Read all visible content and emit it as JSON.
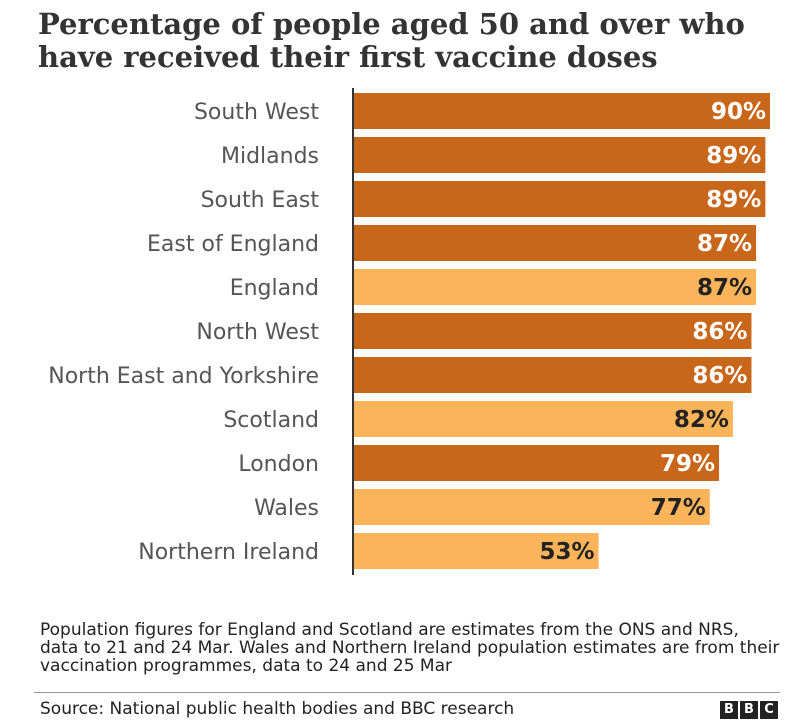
{
  "title": "Percentage of people aged 50 and over who have received their first vaccine doses",
  "note": "Population figures for England and Scotland are estimates from the ONS and NRS, data to 21 and 24 Mar. Wales and Northern Ireland population estimates are from their vaccination programmes, data to 24 and 25 Mar",
  "source": "Source: National public health bodies and BBC research",
  "logo": [
    "B",
    "B",
    "C"
  ],
  "colors": {
    "region": "#c8661a",
    "nation": "#fbb45a",
    "axis": "#333333"
  },
  "chart_data": {
    "type": "bar",
    "orientation": "horizontal",
    "title": "Percentage of people aged 50 and over who have received their first vaccine doses",
    "xlabel": "",
    "ylabel": "",
    "xlim": [
      0,
      90
    ],
    "grid": false,
    "categories": [
      "South West",
      "Midlands",
      "South East",
      "East of England",
      "England",
      "North West",
      "North East and Yorkshire",
      "Scotland",
      "London",
      "Wales",
      "Northern Ireland"
    ],
    "values": [
      90,
      89,
      89,
      87,
      87,
      86,
      86,
      82,
      79,
      77,
      53
    ],
    "value_labels": [
      "90%",
      "89%",
      "89%",
      "87%",
      "87%",
      "86%",
      "86%",
      "82%",
      "79%",
      "77%",
      "53%"
    ],
    "bar_kind": [
      "region",
      "region",
      "region",
      "region",
      "nation",
      "region",
      "region",
      "nation",
      "region",
      "nation",
      "nation"
    ]
  }
}
